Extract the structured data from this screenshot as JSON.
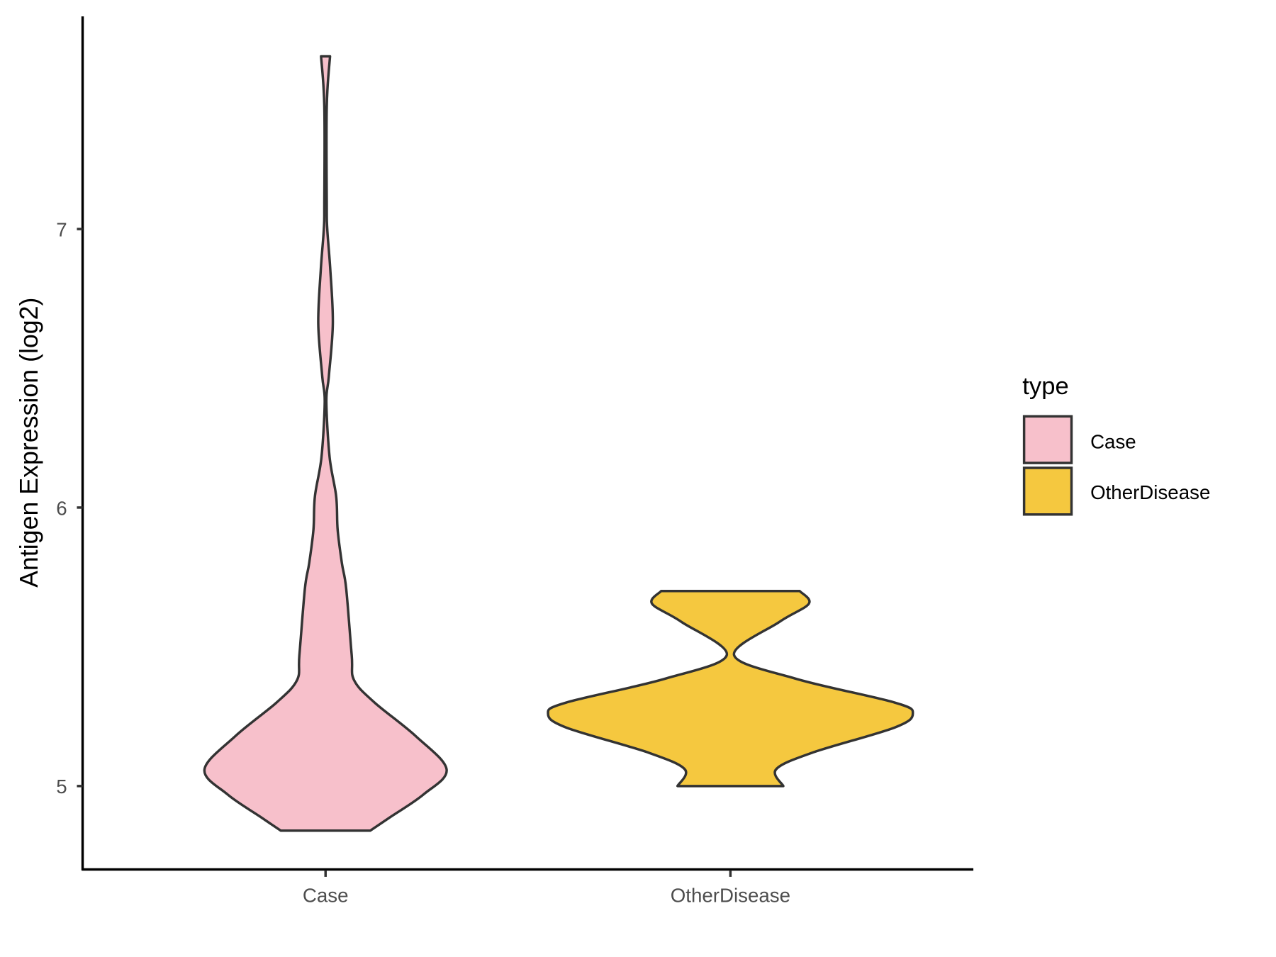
{
  "chart_data": {
    "type": "violin",
    "title": "",
    "xlabel": "",
    "ylabel": "Antigen Expression (log2)",
    "ylim": [
      4.78,
      7.78
    ],
    "yticks": [
      5,
      6,
      7
    ],
    "ytick_labels": [
      "5",
      "6",
      "7"
    ],
    "categories": [
      "Case",
      "OtherDisease"
    ],
    "grid": false,
    "legend": {
      "title": "type",
      "placement": "right",
      "entries": [
        "Case",
        "OtherDisease"
      ]
    },
    "series": [
      {
        "name": "Case",
        "color": "#F7C0CB",
        "min": 4.84,
        "max": 7.62,
        "density_profile": {
          "y": [
            4.84,
            4.89,
            4.97,
            5.06,
            5.18,
            5.3,
            5.38,
            5.47,
            5.71,
            5.8,
            5.92,
            6.04,
            6.18,
            6.38,
            6.47,
            6.66,
            6.85,
            7.0,
            7.09,
            7.44,
            7.62
          ],
          "relative_width": [
            0.37,
            0.54,
            0.81,
            1.0,
            0.743,
            0.405,
            0.236,
            0.216,
            0.17,
            0.135,
            0.1,
            0.088,
            0.034,
            0.007,
            0.027,
            0.06,
            0.04,
            0.014,
            0.01,
            0.01,
            0.037
          ]
        }
      },
      {
        "name": "OtherDisease",
        "color": "#F5C83F",
        "min": 5.0,
        "max": 5.7,
        "density_profile": {
          "y": [
            5.0,
            5.06,
            5.12,
            5.21,
            5.26,
            5.3,
            5.385,
            5.47,
            5.59,
            5.655,
            5.7
          ],
          "relative_width": [
            0.29,
            0.25,
            0.45,
            0.9,
            1.0,
            0.9,
            0.36,
            0.02,
            0.27,
            0.43,
            0.38
          ]
        }
      }
    ]
  }
}
